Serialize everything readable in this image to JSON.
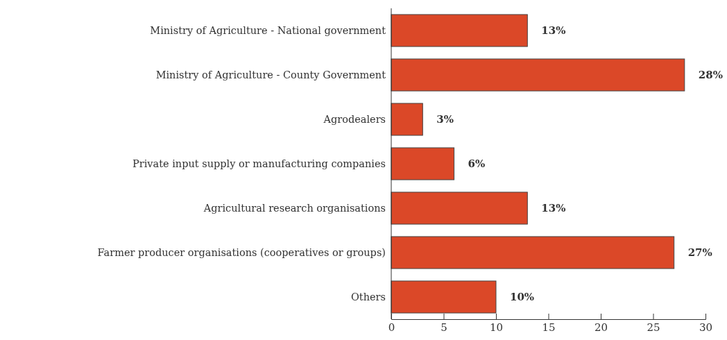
{
  "chart_data": {
    "type": "bar",
    "orientation": "horizontal",
    "categories": [
      "Ministry of Agriculture - National government",
      "Ministry of Agriculture - County Government",
      "Agrodealers",
      "Private input supply or manufacturing companies",
      "Agricultural research organisations",
      "Farmer producer organisations (cooperatives or groups)",
      "Others"
    ],
    "values": [
      13,
      28,
      3,
      6,
      13,
      27,
      10
    ],
    "value_labels": [
      "13%",
      "28%",
      "3%",
      "6%",
      "13%",
      "27%",
      "10%"
    ],
    "color": "#db4828",
    "xlim": [
      0,
      30
    ],
    "xticks": [
      0,
      5,
      10,
      15,
      20,
      25,
      30
    ]
  }
}
